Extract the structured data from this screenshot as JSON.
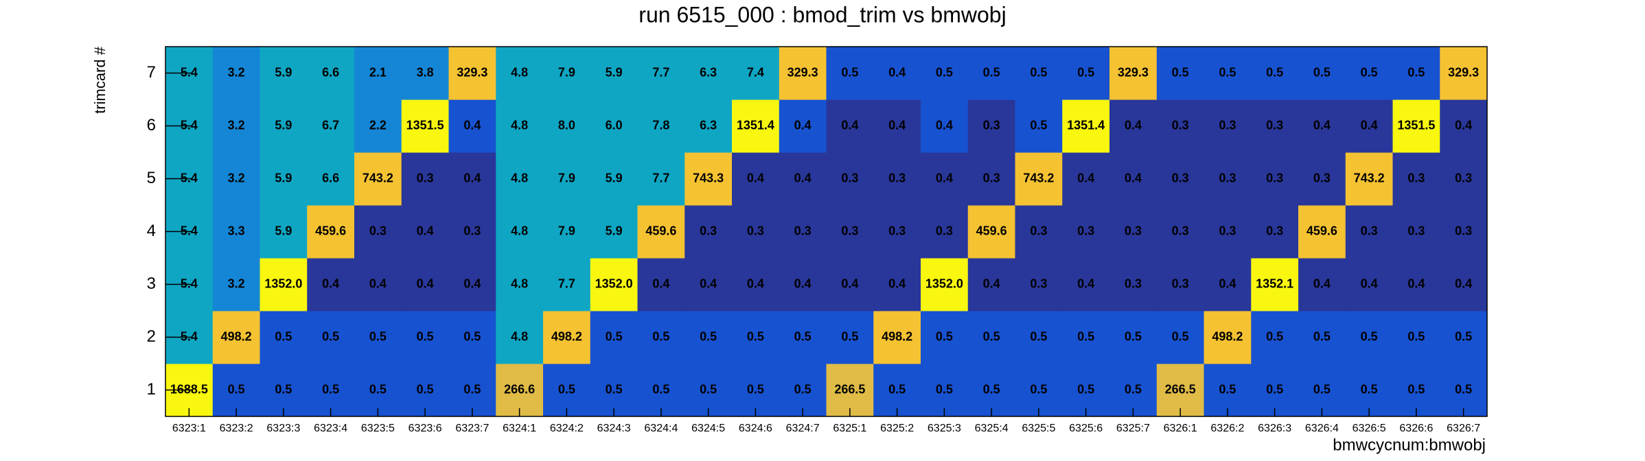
{
  "chart_data": {
    "type": "heatmap",
    "title": "run 6515_000 : bmod_trim vs bmwobj",
    "x_label": "bmwcycnum:bmwobj",
    "y_label": "trimcard #",
    "categories": [
      "6323:1",
      "6323:2",
      "6323:3",
      "6323:4",
      "6323:5",
      "6323:6",
      "6323:7",
      "6324:1",
      "6324:2",
      "6324:3",
      "6324:4",
      "6324:5",
      "6324:6",
      "6324:7",
      "6325:1",
      "6325:2",
      "6325:3",
      "6325:4",
      "6325:5",
      "6325:6",
      "6325:7",
      "6326:1",
      "6326:2",
      "6326:3",
      "6326:4",
      "6326:5",
      "6326:6",
      "6326:7"
    ],
    "y": [
      1,
      2,
      3,
      4,
      5,
      6,
      7
    ],
    "ylim": [
      0.5,
      7.5
    ],
    "yticks": [
      1,
      2,
      3,
      4,
      5,
      6,
      7
    ],
    "values": [
      [
        1688.5,
        0.5,
        0.5,
        0.5,
        0.5,
        0.5,
        0.5,
        266.6,
        0.5,
        0.5,
        0.5,
        0.5,
        0.5,
        0.5,
        266.5,
        0.5,
        0.5,
        0.5,
        0.5,
        0.5,
        0.5,
        266.5,
        0.5,
        0.5,
        0.5,
        0.5,
        0.5,
        0.5
      ],
      [
        5.4,
        498.2,
        0.5,
        0.5,
        0.5,
        0.5,
        0.5,
        4.8,
        498.2,
        0.5,
        0.5,
        0.5,
        0.5,
        0.5,
        0.5,
        498.2,
        0.5,
        0.5,
        0.5,
        0.5,
        0.5,
        0.5,
        498.2,
        0.5,
        0.5,
        0.5,
        0.5,
        0.5
      ],
      [
        5.4,
        3.2,
        1352,
        0.4,
        0.4,
        0.4,
        0.4,
        4.8,
        7.7,
        1352,
        0.4,
        0.4,
        0.4,
        0.4,
        0.4,
        0.4,
        1352,
        0.4,
        0.3,
        0.4,
        0.3,
        0.3,
        0.4,
        1352.1,
        0.4,
        0.4,
        0.4,
        0.4
      ],
      [
        5.4,
        3.3,
        5.9,
        459.6,
        0.3,
        0.4,
        0.3,
        4.8,
        7.9,
        5.9,
        459.6,
        0.3,
        0.3,
        0.3,
        0.3,
        0.3,
        0.3,
        459.6,
        0.3,
        0.3,
        0.3,
        0.3,
        0.3,
        0.3,
        459.6,
        0.3,
        0.3,
        0.3
      ],
      [
        5.4,
        3.2,
        5.9,
        6.6,
        743.2,
        0.3,
        0.4,
        4.8,
        7.9,
        5.9,
        7.7,
        743.3,
        0.4,
        0.4,
        0.3,
        0.3,
        0.4,
        0.3,
        743.2,
        0.4,
        0.4,
        0.3,
        0.3,
        0.3,
        0.3,
        743.2,
        0.3,
        0.3
      ],
      [
        5.4,
        3.2,
        5.9,
        6.7,
        2.2,
        1351.5,
        0.4,
        4.8,
        8,
        6,
        7.8,
        6.3,
        1351.4,
        0.4,
        0.4,
        0.4,
        0.4,
        0.3,
        0.5,
        1351.4,
        0.4,
        0.3,
        0.3,
        0.3,
        0.4,
        0.4,
        1351.5,
        0.4
      ],
      [
        5.4,
        3.2,
        5.9,
        6.6,
        2.1,
        3.8,
        329.3,
        4.8,
        7.9,
        5.9,
        7.7,
        6.3,
        7.4,
        329.3,
        0.5,
        0.4,
        0.5,
        0.5,
        0.5,
        0.5,
        329.3,
        0.5,
        0.5,
        0.5,
        0.5,
        0.5,
        0.5,
        329.3
      ]
    ],
    "value_labels": [
      [
        "1688.5",
        "0.5",
        "0.5",
        "0.5",
        "0.5",
        "0.5",
        "0.5",
        "266.6",
        "0.5",
        "0.5",
        "0.5",
        "0.5",
        "0.5",
        "0.5",
        "266.5",
        "0.5",
        "0.5",
        "0.5",
        "0.5",
        "0.5",
        "0.5",
        "266.5",
        "0.5",
        "0.5",
        "0.5",
        "0.5",
        "0.5",
        "0.5"
      ],
      [
        "5.4",
        "498.2",
        "0.5",
        "0.5",
        "0.5",
        "0.5",
        "0.5",
        "4.8",
        "498.2",
        "0.5",
        "0.5",
        "0.5",
        "0.5",
        "0.5",
        "0.5",
        "498.2",
        "0.5",
        "0.5",
        "0.5",
        "0.5",
        "0.5",
        "0.5",
        "498.2",
        "0.5",
        "0.5",
        "0.5",
        "0.5",
        "0.5"
      ],
      [
        "5.4",
        "3.2",
        "1352.0",
        "0.4",
        "0.4",
        "0.4",
        "0.4",
        "4.8",
        "7.7",
        "1352.0",
        "0.4",
        "0.4",
        "0.4",
        "0.4",
        "0.4",
        "0.4",
        "1352.0",
        "0.4",
        "0.3",
        "0.4",
        "0.3",
        "0.3",
        "0.4",
        "1352.1",
        "0.4",
        "0.4",
        "0.4",
        "0.4"
      ],
      [
        "5.4",
        "3.3",
        "5.9",
        "459.6",
        "0.3",
        "0.4",
        "0.3",
        "4.8",
        "7.9",
        "5.9",
        "459.6",
        "0.3",
        "0.3",
        "0.3",
        "0.3",
        "0.3",
        "0.3",
        "459.6",
        "0.3",
        "0.3",
        "0.3",
        "0.3",
        "0.3",
        "0.3",
        "459.6",
        "0.3",
        "0.3",
        "0.3"
      ],
      [
        "5.4",
        "3.2",
        "5.9",
        "6.6",
        "743.2",
        "0.3",
        "0.4",
        "4.8",
        "7.9",
        "5.9",
        "7.7",
        "743.3",
        "0.4",
        "0.4",
        "0.3",
        "0.3",
        "0.4",
        "0.3",
        "743.2",
        "0.4",
        "0.4",
        "0.3",
        "0.3",
        "0.3",
        "0.3",
        "743.2",
        "0.3",
        "0.3"
      ],
      [
        "5.4",
        "3.2",
        "5.9",
        "6.7",
        "2.2",
        "1351.5",
        "0.4",
        "4.8",
        "8.0",
        "6.0",
        "7.8",
        "6.3",
        "1351.4",
        "0.4",
        "0.4",
        "0.4",
        "0.4",
        "0.3",
        "0.5",
        "1351.4",
        "0.4",
        "0.3",
        "0.3",
        "0.3",
        "0.4",
        "0.4",
        "1351.5",
        "0.4"
      ],
      [
        "5.4",
        "3.2",
        "5.9",
        "6.6",
        "2.1",
        "3.8",
        "329.3",
        "4.8",
        "7.9",
        "5.9",
        "7.7",
        "6.3",
        "7.4",
        "329.3",
        "0.5",
        "0.4",
        "0.5",
        "0.5",
        "0.5",
        "0.5",
        "329.3",
        "0.5",
        "0.5",
        "0.5",
        "0.5",
        "0.5",
        "0.5",
        "329.3"
      ]
    ],
    "colors": [
      [
        "#f9f70f",
        "#1752d0",
        "#1752d0",
        "#1752d0",
        "#1752d0",
        "#1752d0",
        "#1752d0",
        "#e0bc47",
        "#1752d0",
        "#1752d0",
        "#1752d0",
        "#1752d0",
        "#1752d0",
        "#1752d0",
        "#e0bc47",
        "#1752d0",
        "#1752d0",
        "#1752d0",
        "#1752d0",
        "#1752d0",
        "#1752d0",
        "#e0bc47",
        "#1752d0",
        "#1752d0",
        "#1752d0",
        "#1752d0",
        "#1752d0",
        "#1752d0"
      ],
      [
        "#0fa6c4",
        "#f5c232",
        "#1752d0",
        "#1752d0",
        "#1752d0",
        "#1752d0",
        "#1752d0",
        "#0fa6c4",
        "#f5c232",
        "#1752d0",
        "#1752d0",
        "#1752d0",
        "#1752d0",
        "#1752d0",
        "#1752d0",
        "#f5c232",
        "#1752d0",
        "#1752d0",
        "#1752d0",
        "#1752d0",
        "#1752d0",
        "#1752d0",
        "#f5c232",
        "#1752d0",
        "#1752d0",
        "#1752d0",
        "#1752d0",
        "#1752d0"
      ],
      [
        "#0fa6c4",
        "#1586d6",
        "#f9f70f",
        "#29379a",
        "#29379a",
        "#29379a",
        "#29379a",
        "#0fa6c4",
        "#0fa6c4",
        "#f9f70f",
        "#29379a",
        "#29379a",
        "#29379a",
        "#29379a",
        "#29379a",
        "#29379a",
        "#f9f70f",
        "#29379a",
        "#29379a",
        "#29379a",
        "#29379a",
        "#29379a",
        "#29379a",
        "#f9f70f",
        "#29379a",
        "#29379a",
        "#29379a",
        "#29379a"
      ],
      [
        "#0fa6c4",
        "#1586d6",
        "#0fa6c4",
        "#f5c232",
        "#29379a",
        "#29379a",
        "#29379a",
        "#0fa6c4",
        "#0fa6c4",
        "#0fa6c4",
        "#f5c232",
        "#29379a",
        "#29379a",
        "#29379a",
        "#29379a",
        "#29379a",
        "#29379a",
        "#f5c232",
        "#29379a",
        "#29379a",
        "#29379a",
        "#29379a",
        "#29379a",
        "#29379a",
        "#f5c232",
        "#29379a",
        "#29379a",
        "#29379a"
      ],
      [
        "#0fa6c4",
        "#1586d6",
        "#0fa6c4",
        "#0fa6c4",
        "#f5c232",
        "#29379a",
        "#29379a",
        "#0fa6c4",
        "#0fa6c4",
        "#0fa6c4",
        "#0fa6c4",
        "#f5c232",
        "#29379a",
        "#29379a",
        "#29379a",
        "#29379a",
        "#29379a",
        "#29379a",
        "#f5c232",
        "#29379a",
        "#29379a",
        "#29379a",
        "#29379a",
        "#29379a",
        "#29379a",
        "#f5c232",
        "#29379a",
        "#29379a"
      ],
      [
        "#0fa6c4",
        "#1586d6",
        "#0fa6c4",
        "#0fa6c4",
        "#1586d6",
        "#f9f70f",
        "#1752d0",
        "#0fa6c4",
        "#0fa6c4",
        "#0fa6c4",
        "#0fa6c4",
        "#0fa6c4",
        "#f9f70f",
        "#1752d0",
        "#29379a",
        "#29379a",
        "#1752d0",
        "#29379a",
        "#1752d0",
        "#f9f70f",
        "#29379a",
        "#29379a",
        "#29379a",
        "#29379a",
        "#29379a",
        "#29379a",
        "#f9f70f",
        "#29379a"
      ],
      [
        "#0fa6c4",
        "#1586d6",
        "#0fa6c4",
        "#0fa6c4",
        "#1586d6",
        "#1586d6",
        "#f5c232",
        "#0fa6c4",
        "#0fa6c4",
        "#0fa6c4",
        "#0fa6c4",
        "#0fa6c4",
        "#0fa6c4",
        "#f5c232",
        "#1752d0",
        "#1752d0",
        "#1752d0",
        "#1752d0",
        "#1752d0",
        "#1752d0",
        "#f5c232",
        "#1752d0",
        "#1752d0",
        "#1752d0",
        "#1752d0",
        "#1752d0",
        "#1752d0",
        "#f5c232"
      ]
    ]
  }
}
